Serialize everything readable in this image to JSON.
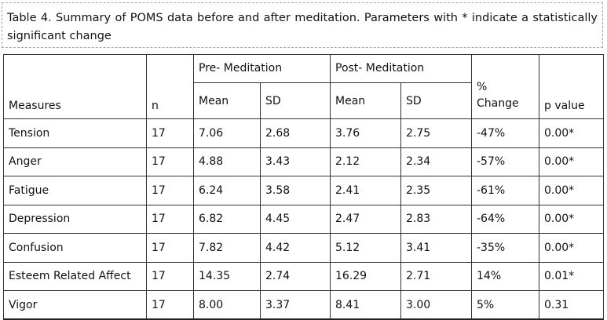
{
  "caption": "Table 4. Summary of POMS data before and after meditation. Parameters with * indicate a statistically significant change",
  "table": {
    "group_headers": {
      "pre": "Pre- Meditation",
      "post": "Post- Meditation"
    },
    "headers": {
      "measures": "Measures",
      "n": "n",
      "pre_mean": "Mean",
      "pre_sd": "SD",
      "post_mean": "Mean",
      "post_sd": "SD",
      "change_symbol": "%",
      "change_label": "Change",
      "p_value": "p value"
    },
    "rows": [
      {
        "measure": "Tension",
        "n": "17",
        "pre_mean": "7.06",
        "pre_sd": "2.68",
        "post_mean": "3.76",
        "post_sd": "2.75",
        "change": "-47%",
        "p": "0.00*"
      },
      {
        "measure": "Anger",
        "n": "17",
        "pre_mean": "4.88",
        "pre_sd": "3.43",
        "post_mean": "2.12",
        "post_sd": "2.34",
        "change": "-57%",
        "p": "0.00*"
      },
      {
        "measure": "Fatigue",
        "n": "17",
        "pre_mean": "6.24",
        "pre_sd": "3.58",
        "post_mean": "2.41",
        "post_sd": "2.35",
        "change": "-61%",
        "p": "0.00*"
      },
      {
        "measure": "Depression",
        "n": "17",
        "pre_mean": "6.82",
        "pre_sd": "4.45",
        "post_mean": "2.47",
        "post_sd": "2.83",
        "change": "-64%",
        "p": "0.00*"
      },
      {
        "measure": "Confusion",
        "n": "17",
        "pre_mean": "7.82",
        "pre_sd": "4.42",
        "post_mean": "5.12",
        "post_sd": "3.41",
        "change": "-35%",
        "p": "0.00*"
      },
      {
        "measure": "Esteem Related Affect",
        "n": "17",
        "pre_mean": "14.35",
        "pre_sd": "2.74",
        "post_mean": "16.29",
        "post_sd": "2.71",
        "change": "14%",
        "p": "0.01*"
      },
      {
        "measure": "Vigor",
        "n": "17",
        "pre_mean": "8.00",
        "pre_sd": "3.37",
        "post_mean": "8.41",
        "post_sd": "3.00",
        "change": "5%",
        "p": "0.31"
      }
    ]
  }
}
